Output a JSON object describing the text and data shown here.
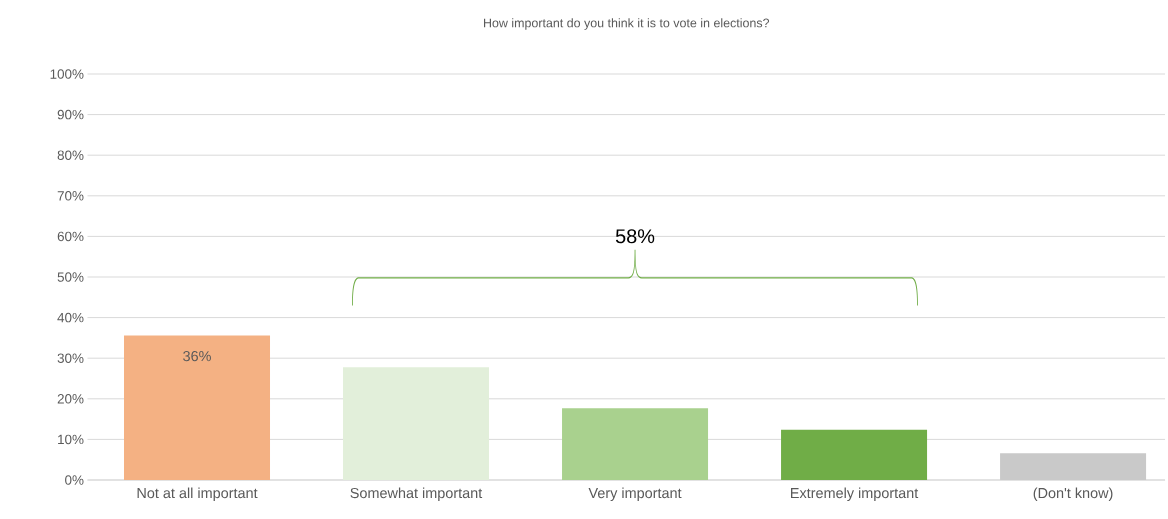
{
  "chart_data": {
    "type": "bar",
    "title": "How important do you think it is to vote in elections?",
    "categories": [
      "Not at all important",
      "Somewhat important",
      "Very important",
      "Extremely important",
      "(Don't know)"
    ],
    "values": [
      35.6,
      27.8,
      17.7,
      12.4,
      6.6
    ],
    "colors": [
      "#f4b183",
      "#e2efda",
      "#a9d18e",
      "#70ad47",
      "#c9c9c9"
    ],
    "value_labels": [
      "36%",
      null,
      null,
      null,
      null
    ],
    "ylim": [
      0,
      100
    ],
    "yticks": [
      {
        "value": 0,
        "label": "0%"
      },
      {
        "value": 10,
        "label": "10%"
      },
      {
        "value": 20,
        "label": "20%"
      },
      {
        "value": 30,
        "label": "30%"
      },
      {
        "value": 40,
        "label": "40%"
      },
      {
        "value": 50,
        "label": "50%"
      },
      {
        "value": 60,
        "label": "60%"
      },
      {
        "value": 70,
        "label": "70%"
      },
      {
        "value": 80,
        "label": "80%"
      },
      {
        "value": 90,
        "label": "90%"
      },
      {
        "value": 100,
        "label": "100%"
      }
    ],
    "grid": "y",
    "legend": false,
    "annotations": [
      "58%"
    ]
  }
}
